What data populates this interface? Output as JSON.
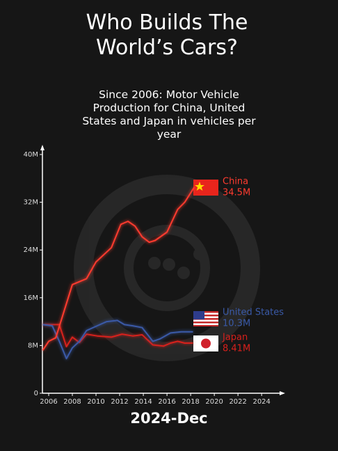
{
  "chart_data": {
    "type": "line",
    "title": "Who Builds The World’s Cars?",
    "subtitle": "Since 2006: Motor Vehicle Production for China, United States and Japan in vehicles per year",
    "footer": "2024-Dec",
    "xlim": [
      2005.5,
      2025.4
    ],
    "xticks": [
      2006,
      2008,
      2010,
      2012,
      2014,
      2016,
      2018,
      2020,
      2022,
      2024
    ],
    "ylim": [
      0,
      40
    ],
    "yticks": [
      0,
      {
        "value": 8,
        "label": "8M"
      },
      {
        "value": 16,
        "label": "16M"
      },
      {
        "value": 24,
        "label": "24M"
      },
      {
        "value": 32,
        "label": "32M"
      },
      {
        "value": 40,
        "label": "40M"
      }
    ],
    "series": [
      {
        "name": "China",
        "color": "#ff3b2f",
        "x": [
          2005.5,
          2006,
          2006.6,
          2008,
          2009.2,
          2010,
          2011.3,
          2012.1,
          2012.7,
          2013.3,
          2013.9,
          2014.5,
          2015,
          2016,
          2016.9,
          2017.5,
          2018.3
        ],
        "values": [
          7.2,
          8.7,
          9.3,
          18.2,
          19.2,
          22,
          24.4,
          28.3,
          28.8,
          28,
          26.2,
          25.3,
          25.6,
          27,
          30.8,
          32,
          34.5
        ],
        "value_labels": [
          null,
          null,
          null,
          null,
          null,
          null,
          null,
          null,
          null,
          null,
          null,
          null,
          null,
          null,
          null,
          null,
          "34.5M"
        ]
      },
      {
        "name": "United States",
        "color": "#3a5aa8",
        "x": [
          2005.5,
          2006.3,
          2006.9,
          2007.5,
          2008,
          2008.6,
          2009.2,
          2010.1,
          2010.9,
          2011.8,
          2012.4,
          2013.1,
          2013.9,
          2014.8,
          2015.4,
          2016.3,
          2017.2,
          2018.2
        ],
        "values": [
          11.5,
          11.3,
          8.7,
          5.8,
          7.6,
          8.7,
          10.5,
          11.3,
          12,
          12.2,
          11.5,
          11.3,
          11,
          8.7,
          9.1,
          10.1,
          10.3,
          10.3
        ],
        "value_labels": [
          null,
          null,
          null,
          null,
          null,
          null,
          null,
          null,
          null,
          null,
          null,
          null,
          null,
          null,
          null,
          null,
          null,
          "10.3M"
        ]
      },
      {
        "name": "Japan",
        "color": "#d8201c",
        "x": [
          2005.5,
          2006.9,
          2007.5,
          2008,
          2008.6,
          2009.2,
          2010.1,
          2011.3,
          2012.2,
          2013.1,
          2013.9,
          2014.8,
          2015.7,
          2016.3,
          2016.9,
          2017.5,
          2018.2
        ],
        "values": [
          11.5,
          11.5,
          7.8,
          9.4,
          8.5,
          9.9,
          9.6,
          9.4,
          9.9,
          9.6,
          9.8,
          8.1,
          7.9,
          8.4,
          8.7,
          8.4,
          8.41
        ],
        "value_labels": [
          null,
          null,
          null,
          null,
          null,
          null,
          null,
          null,
          null,
          null,
          null,
          null,
          null,
          null,
          null,
          null,
          "8.41M"
        ]
      }
    ]
  }
}
